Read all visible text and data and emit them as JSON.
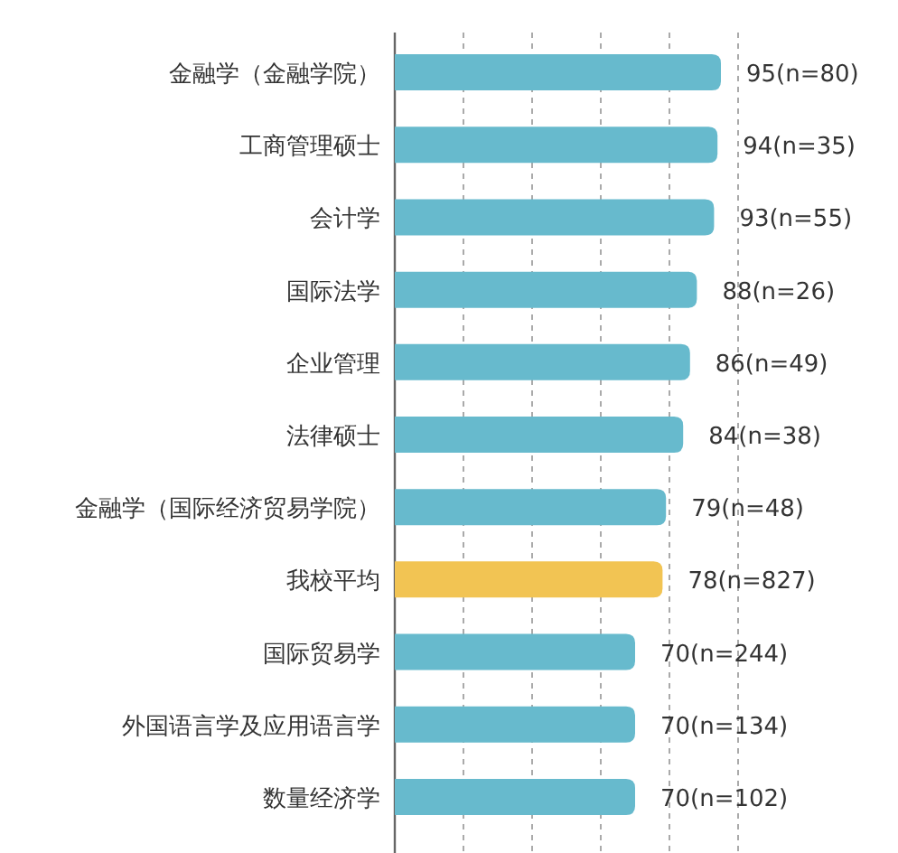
{
  "chart_data": {
    "type": "bar",
    "orientation": "horizontal",
    "categories": [
      "金融学（金融学院）",
      "工商管理硕士",
      "会计学",
      "国际法学",
      "企业管理",
      "法律硕士",
      "金融学（国际经济贸易学院）",
      "我校平均",
      "国际贸易学",
      "外国语言学及应用语言学",
      "数量经济学"
    ],
    "values": [
      95,
      94,
      93,
      88,
      86,
      84,
      79,
      78,
      70,
      70,
      70
    ],
    "colors": [
      "#67bacd",
      "#67bacd",
      "#67bacd",
      "#67bacd",
      "#67bacd",
      "#67bacd",
      "#67bacd",
      "#f2c453",
      "#67bacd",
      "#67bacd",
      "#67bacd"
    ],
    "value_labels": [
      "95(n=80)",
      "94(n=35)",
      "93(n=55)",
      "88(n=26)",
      "86(n=49)",
      "84(n=38)",
      "79(n=48)",
      "78(n=827)",
      "70(n=244)",
      "70(n=134)",
      "70(n=102)"
    ],
    "xlim": [
      0,
      100
    ],
    "xticks": [
      {
        "value": 20,
        "label": null
      },
      {
        "value": 40,
        "label": null
      },
      {
        "value": 60,
        "label": null
      },
      {
        "value": 80,
        "label": null
      },
      {
        "value": 100,
        "label": null
      }
    ],
    "grid": "x",
    "tick_labels": "y"
  }
}
